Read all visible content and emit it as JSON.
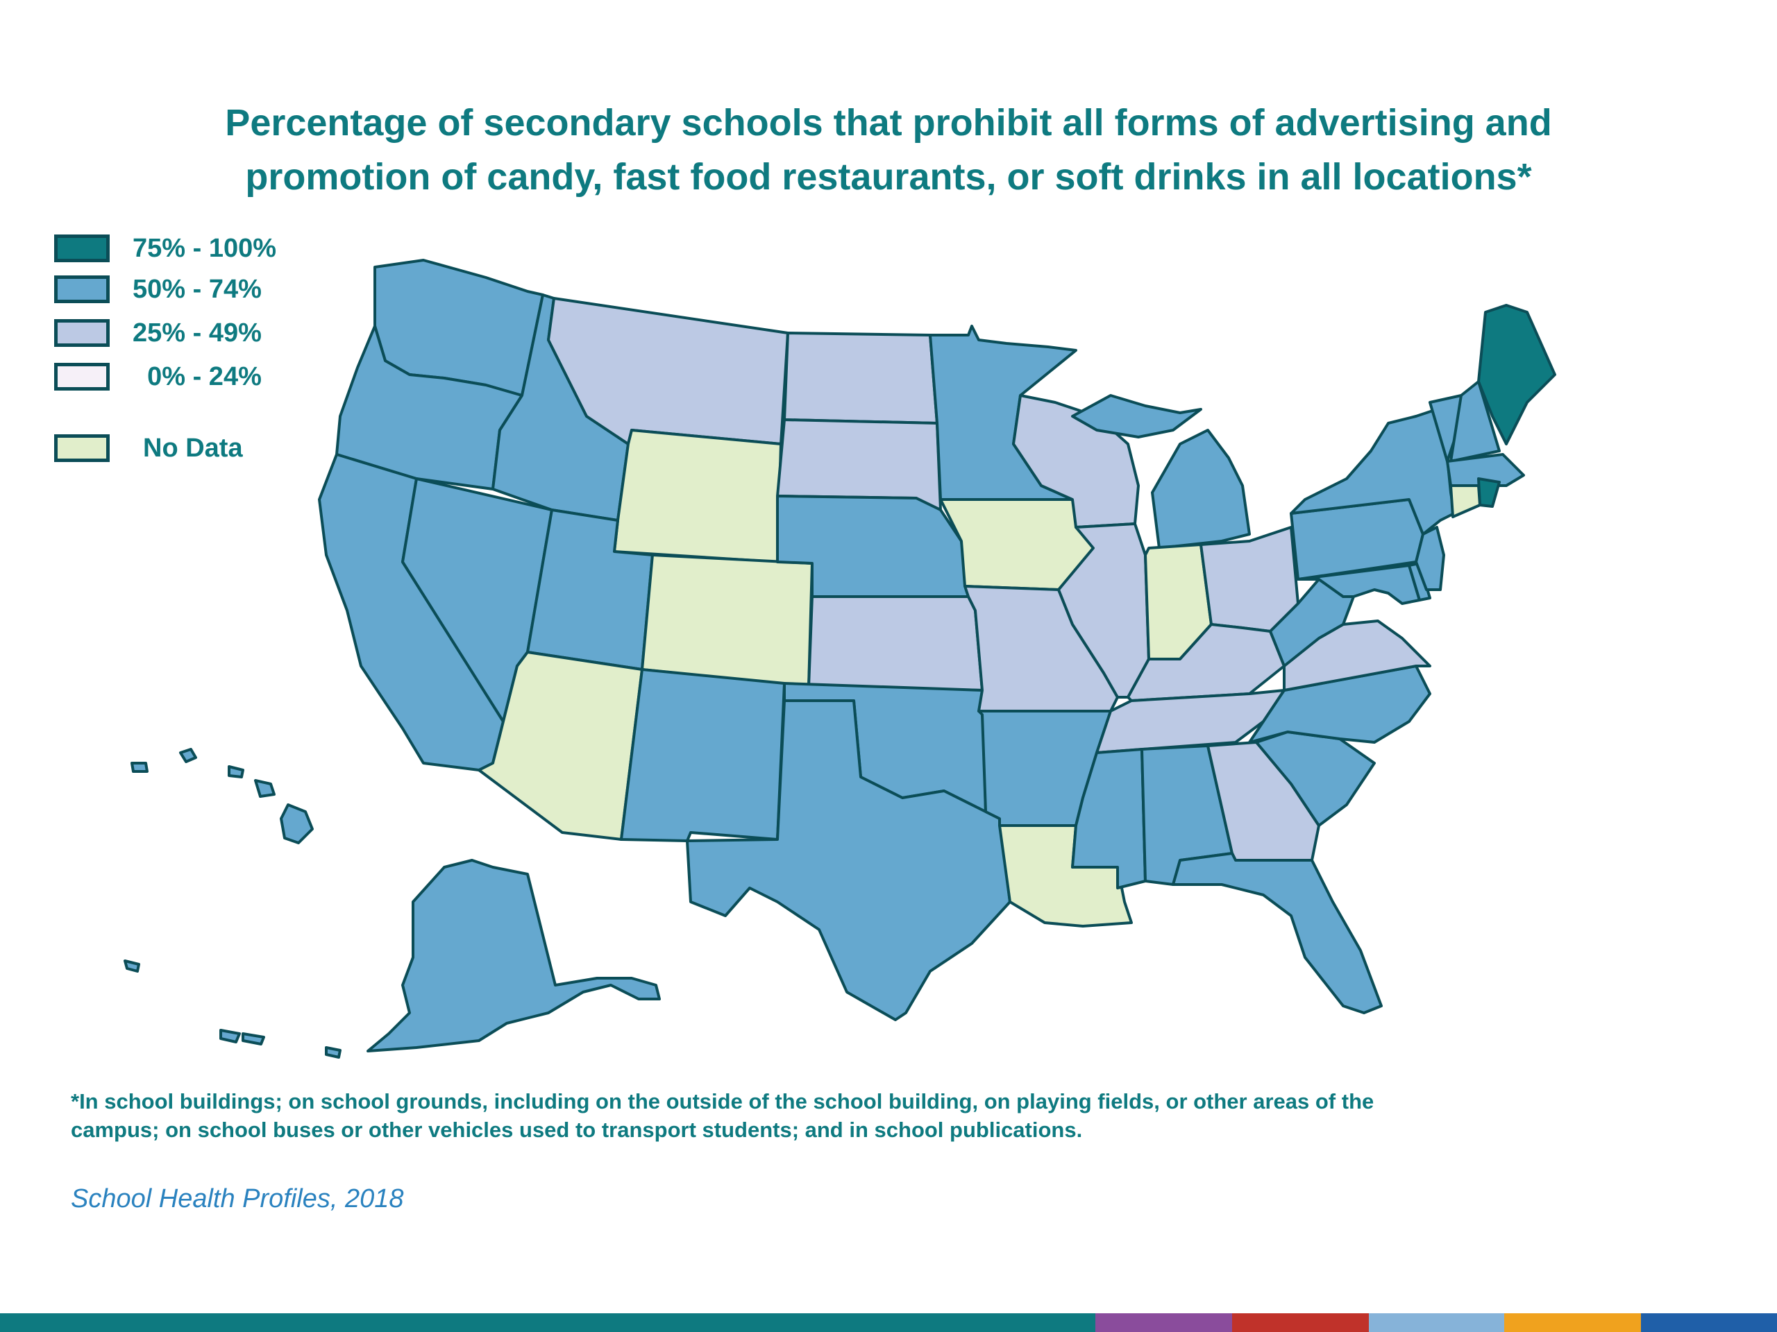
{
  "title": {
    "line1": "Percentage of secondary schools that prohibit all forms of advertising and",
    "line2": "promotion of candy, fast food restaurants, or soft drinks in all locations*"
  },
  "legend": {
    "items": [
      {
        "label": "75% - 100%",
        "color": "#0e7a80"
      },
      {
        "label": "50% - 74%",
        "color": "#65a8cf"
      },
      {
        "label": "25% - 49%",
        "color": "#bcc9e4"
      },
      {
        "label": "  0% - 24%",
        "color": "#f6f0f8"
      },
      {
        "label": "No Data",
        "color": "#e1eecb"
      }
    ]
  },
  "map_data": {
    "category_colors": {
      "75-100": "#0e7a80",
      "50-74": "#65a8cf",
      "25-49": "#bcc9e4",
      "0-24": "#f6f0f8",
      "no-data": "#e1eecb"
    },
    "outline_color": "#0b4d57",
    "states": {
      "WA": "50-74",
      "OR": "50-74",
      "CA": "50-74",
      "NV": "50-74",
      "ID": "50-74",
      "MT": "25-49",
      "WY": "no-data",
      "UT": "50-74",
      "AZ": "no-data",
      "CO": "no-data",
      "NM": "50-74",
      "ND": "25-49",
      "SD": "25-49",
      "NE": "50-74",
      "KS": "25-49",
      "OK": "50-74",
      "TX": "50-74",
      "MN": "50-74",
      "IA": "no-data",
      "MO": "25-49",
      "AR": "50-74",
      "LA": "no-data",
      "WI": "25-49",
      "IL": "25-49",
      "MI": "50-74",
      "IN": "no-data",
      "OH": "25-49",
      "KY": "25-49",
      "TN": "25-49",
      "MS": "50-74",
      "AL": "50-74",
      "GA": "25-49",
      "FL": "50-74",
      "SC": "50-74",
      "NC": "50-74",
      "VA": "25-49",
      "WV": "50-74",
      "PA": "50-74",
      "NY": "50-74",
      "VT": "50-74",
      "NH": "50-74",
      "ME": "75-100",
      "MA": "50-74",
      "RI": "75-100",
      "CT": "no-data",
      "NJ": "50-74",
      "DE": "50-74",
      "MD": "50-74",
      "AK": "50-74",
      "HI": "50-74"
    }
  },
  "footnote": {
    "line1": "*In school buildings; on school grounds, including on the outside of the school building, on playing fields, or other areas of the",
    "line2": "campus; on school buses or other vehicles used to transport students; and in school publications."
  },
  "source": "School Health Profiles, 2018",
  "bottom_bar_colors": [
    "#0e7a80",
    "#8a4c9c",
    "#c0322a",
    "#86b3d9",
    "#f0a21e",
    "#1f5fa8"
  ]
}
